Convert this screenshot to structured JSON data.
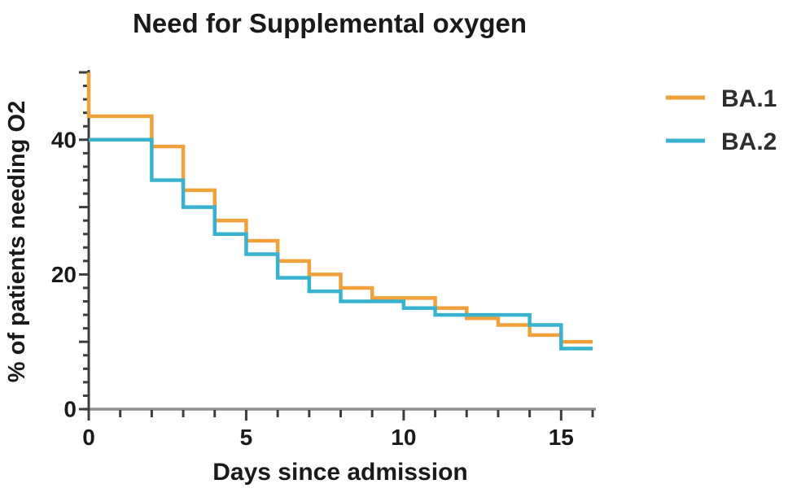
{
  "chart_data": {
    "type": "line",
    "subtype": "step-survival",
    "title": "Need for Supplemental oxygen",
    "xlabel": "Days since admission",
    "ylabel": "% of patients needing O2",
    "xlim": [
      0,
      16
    ],
    "ylim": [
      0,
      50
    ],
    "x_tick_interval": 1,
    "x_labeled_ticks": [
      0,
      5,
      10,
      15
    ],
    "y_tick_interval": 2,
    "y_labeled_ticks": [
      0,
      20,
      40
    ],
    "grid": false,
    "legend_position": "right",
    "series": [
      {
        "name": "BA.1",
        "color": "#F1A13C",
        "steps": [
          [
            0,
            50
          ],
          [
            0,
            43.5
          ],
          [
            2,
            39
          ],
          [
            3,
            32.5
          ],
          [
            4,
            28
          ],
          [
            5,
            25
          ],
          [
            6,
            22
          ],
          [
            7,
            20
          ],
          [
            8,
            18
          ],
          [
            9,
            16.5
          ],
          [
            11,
            15
          ],
          [
            12,
            13.5
          ],
          [
            13,
            12.5
          ],
          [
            14,
            11
          ],
          [
            15,
            10
          ],
          [
            16,
            10
          ]
        ]
      },
      {
        "name": "BA.2",
        "color": "#38B2CE",
        "steps": [
          [
            0,
            40
          ],
          [
            2,
            34
          ],
          [
            3,
            30
          ],
          [
            4,
            26
          ],
          [
            5,
            23
          ],
          [
            6,
            19.5
          ],
          [
            7,
            17.5
          ],
          [
            8,
            16
          ],
          [
            10,
            15
          ],
          [
            11,
            14
          ],
          [
            14,
            12.5
          ],
          [
            15,
            9
          ],
          [
            16,
            9
          ]
        ]
      }
    ]
  },
  "colors": {
    "axis_y": "#3d3d3d",
    "axis_x_line": "#8f8f8f",
    "tick": "#3d3d3d",
    "text": "#1a1a1a"
  }
}
